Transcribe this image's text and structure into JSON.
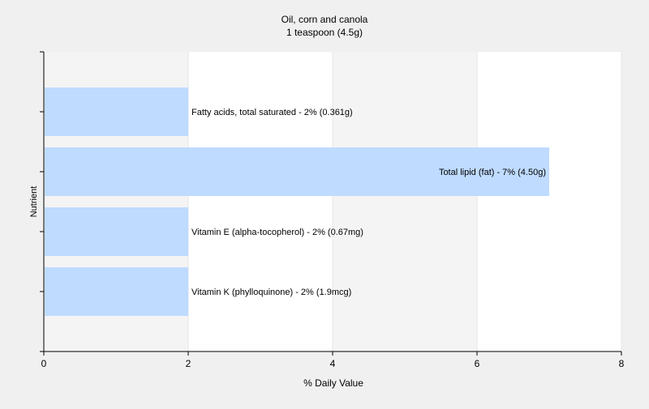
{
  "chart_data": {
    "type": "bar",
    "orientation": "horizontal",
    "title": "Oil, corn and canola",
    "subtitle": "1 teaspoon (4.5g)",
    "xlabel": "% Daily Value",
    "ylabel": "Nutrient",
    "xlim": [
      0,
      8
    ],
    "xticks": [
      "0",
      "2",
      "4",
      "6",
      "8"
    ],
    "grid": true,
    "bars": [
      {
        "label": "Fatty acids, total saturated - 2% (0.361g)",
        "value": 2
      },
      {
        "label": "Total lipid (fat) - 7% (4.50g)",
        "value": 7
      },
      {
        "label": "Vitamin E (alpha-tocopherol) - 2% (0.67mg)",
        "value": 2
      },
      {
        "label": "Vitamin K (phylloquinone) - 2% (1.9mcg)",
        "value": 2
      }
    ],
    "colors": {
      "bar": "#bfdbff",
      "axis": "#000000",
      "grid": "#ffffff",
      "band": "#f4f4f4",
      "background": "#f0f0f0"
    }
  }
}
